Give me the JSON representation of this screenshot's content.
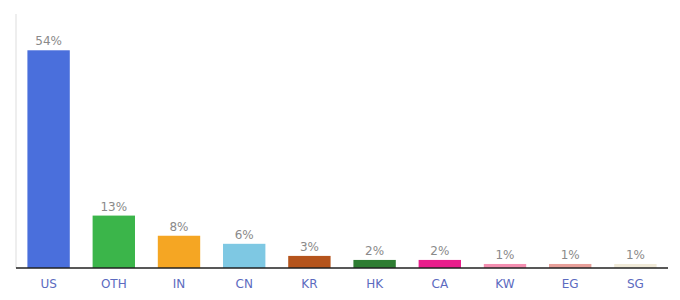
{
  "chart_data": {
    "type": "bar",
    "categories": [
      "US",
      "OTH",
      "IN",
      "CN",
      "KR",
      "HK",
      "CA",
      "KW",
      "EG",
      "SG"
    ],
    "values": [
      54,
      13,
      8,
      6,
      3,
      2,
      2,
      1,
      1,
      1
    ],
    "value_labels": [
      "54%",
      "13%",
      "8%",
      "6%",
      "3%",
      "2%",
      "2%",
      "1%",
      "1%",
      "1%"
    ],
    "colors": [
      "#4a6fdc",
      "#3bb54a",
      "#f5a623",
      "#7ec8e3",
      "#b5541c",
      "#2e7d32",
      "#e91e8c",
      "#f48fb1",
      "#e8a09a",
      "#f0ead8"
    ],
    "ylim": [
      0,
      63
    ],
    "grid": false,
    "data_labels": true,
    "tick_labels": "x"
  }
}
